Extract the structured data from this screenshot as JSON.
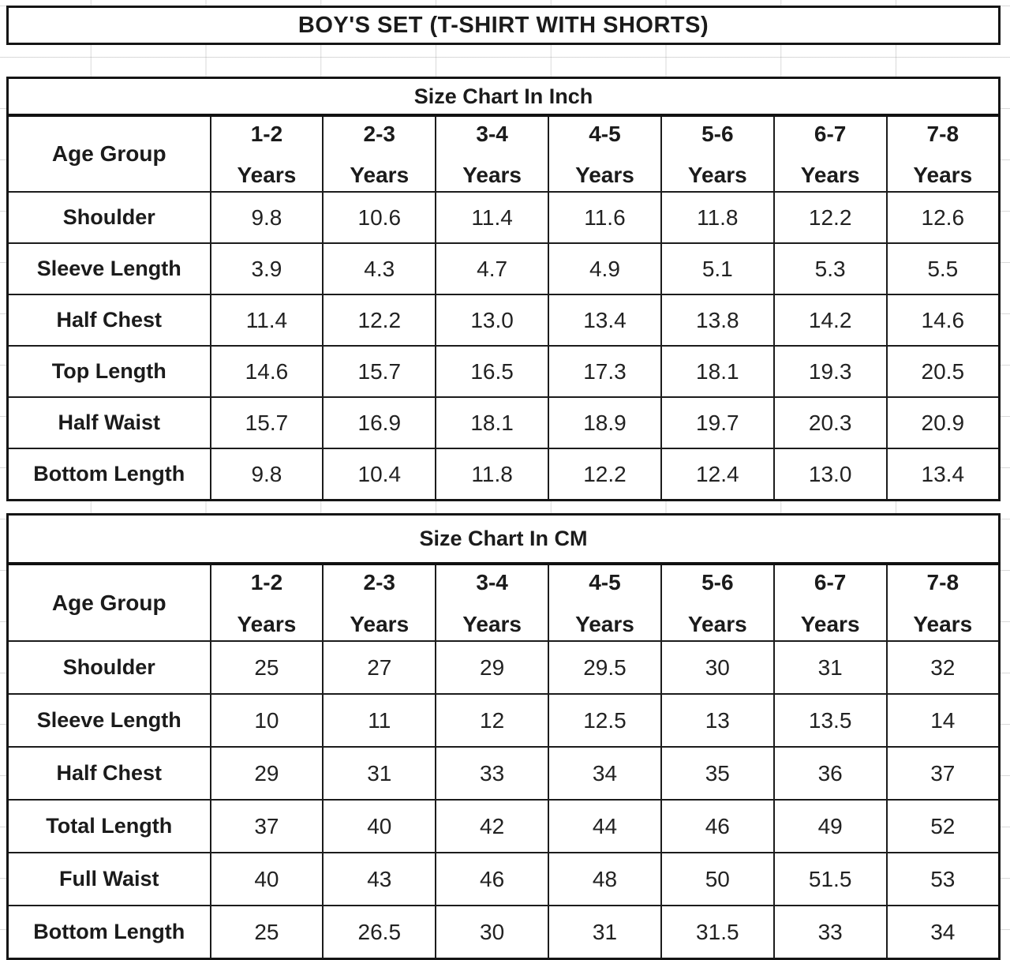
{
  "page_title": "BOY'S SET (T-SHIRT WITH SHORTS)",
  "colors": {
    "border": "#151515",
    "text": "#1b1b1b",
    "background": "#ffffff",
    "faint_gridline": "#d9d9d9"
  },
  "tables": [
    {
      "title": "Size Chart In Inch",
      "corner_label": "Age Group",
      "age_groups": [
        {
          "range": "1-2",
          "suffix": "Years"
        },
        {
          "range": "2-3",
          "suffix": "Years"
        },
        {
          "range": "3-4",
          "suffix": "Years"
        },
        {
          "range": "4-5",
          "suffix": "Years"
        },
        {
          "range": "5-6",
          "suffix": "Years"
        },
        {
          "range": "6-7",
          "suffix": "Years"
        },
        {
          "range": "7-8",
          "suffix": "Years"
        }
      ],
      "rows": [
        {
          "label": "Shoulder",
          "values": [
            "9.8",
            "10.6",
            "11.4",
            "11.6",
            "11.8",
            "12.2",
            "12.6"
          ]
        },
        {
          "label": "Sleeve Length",
          "values": [
            "3.9",
            "4.3",
            "4.7",
            "4.9",
            "5.1",
            "5.3",
            "5.5"
          ]
        },
        {
          "label": "Half Chest",
          "values": [
            "11.4",
            "12.2",
            "13.0",
            "13.4",
            "13.8",
            "14.2",
            "14.6"
          ]
        },
        {
          "label": "Top Length",
          "values": [
            "14.6",
            "15.7",
            "16.5",
            "17.3",
            "18.1",
            "19.3",
            "20.5"
          ]
        },
        {
          "label": "Half Waist",
          "values": [
            "15.7",
            "16.9",
            "18.1",
            "18.9",
            "19.7",
            "20.3",
            "20.9"
          ]
        },
        {
          "label": "Bottom Length",
          "values": [
            "9.8",
            "10.4",
            "11.8",
            "12.2",
            "12.4",
            "13.0",
            "13.4"
          ]
        }
      ]
    },
    {
      "title": "Size Chart In CM",
      "corner_label": "Age Group",
      "age_groups": [
        {
          "range": "1-2",
          "suffix": "Years"
        },
        {
          "range": "2-3",
          "suffix": "Years"
        },
        {
          "range": "3-4",
          "suffix": "Years"
        },
        {
          "range": "4-5",
          "suffix": "Years"
        },
        {
          "range": "5-6",
          "suffix": "Years"
        },
        {
          "range": "6-7",
          "suffix": "Years"
        },
        {
          "range": "7-8",
          "suffix": "Years"
        }
      ],
      "rows": [
        {
          "label": "Shoulder",
          "values": [
            "25",
            "27",
            "29",
            "29.5",
            "30",
            "31",
            "32"
          ]
        },
        {
          "label": "Sleeve Length",
          "values": [
            "10",
            "11",
            "12",
            "12.5",
            "13",
            "13.5",
            "14"
          ]
        },
        {
          "label": "Half Chest",
          "values": [
            "29",
            "31",
            "33",
            "34",
            "35",
            "36",
            "37"
          ]
        },
        {
          "label": "Total Length",
          "values": [
            "37",
            "40",
            "42",
            "44",
            "46",
            "49",
            "52"
          ]
        },
        {
          "label": "Full Waist",
          "values": [
            "40",
            "43",
            "46",
            "48",
            "50",
            "51.5",
            "53"
          ]
        },
        {
          "label": "Bottom Length",
          "values": [
            "25",
            "26.5",
            "30",
            "31",
            "31.5",
            "33",
            "34"
          ]
        }
      ]
    }
  ]
}
